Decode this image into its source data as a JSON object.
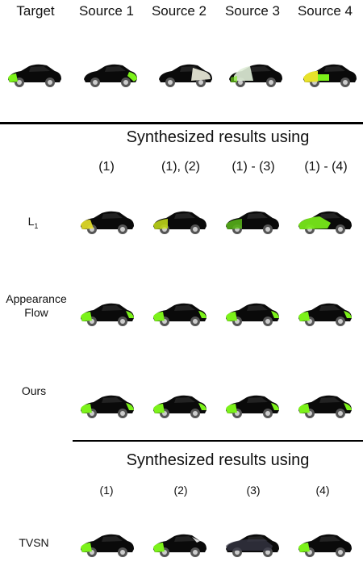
{
  "top_headers": [
    "Target",
    "Source 1",
    "Source 2",
    "Source 3",
    "Source 4"
  ],
  "section1": {
    "title": "Synthesized results using",
    "columns": [
      "(1)",
      "(1), (2)",
      "(1) - (3)",
      "(1) - (4)"
    ],
    "rows": [
      {
        "label_main": "L",
        "label_sub": "1"
      },
      {
        "label": "Appearance Flow",
        "label_line1": "Appearance",
        "label_line2": "Flow"
      },
      {
        "label": "Ours"
      }
    ]
  },
  "section2": {
    "title": "Synthesized results using",
    "columns": [
      "(1)",
      "(2)",
      "(3)",
      "(4)"
    ],
    "rows": [
      {
        "label": "TVSN"
      }
    ]
  },
  "colors": {
    "car_body": "#0a0a0a",
    "accent_green": "#7cf21a",
    "accent_yellow": "#e8e22a",
    "rule": "#000000"
  }
}
